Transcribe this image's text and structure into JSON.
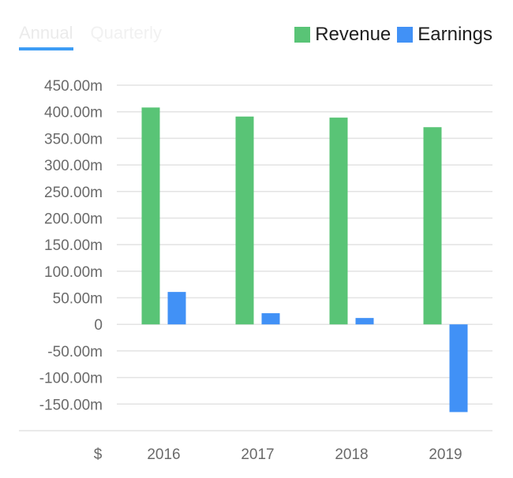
{
  "tabs": [
    {
      "label": "Annual",
      "active": true
    },
    {
      "label": "Quarterly",
      "active": false
    }
  ],
  "legend": {
    "items": [
      {
        "label": "Revenue",
        "color": "#59c476"
      },
      {
        "label": "Earnings",
        "color": "#4191f6"
      }
    ]
  },
  "currency_label": "$",
  "chart_data": {
    "type": "bar",
    "categories": [
      "2016",
      "2017",
      "2018",
      "2019"
    ],
    "series": [
      {
        "name": "Revenue",
        "color": "#59c476",
        "values": [
          408,
          391,
          389,
          371
        ]
      },
      {
        "name": "Earnings",
        "color": "#4191f6",
        "values": [
          61,
          21,
          12,
          -165
        ]
      }
    ],
    "yticks": [
      {
        "value": 450,
        "label": "450.00m"
      },
      {
        "value": 400,
        "label": "400.00m"
      },
      {
        "value": 350,
        "label": "350.00m"
      },
      {
        "value": 300,
        "label": "300.00m"
      },
      {
        "value": 250,
        "label": "250.00m"
      },
      {
        "value": 200,
        "label": "200.00m"
      },
      {
        "value": 150,
        "label": "150.00m"
      },
      {
        "value": 100,
        "label": "100.00m"
      },
      {
        "value": 50,
        "label": "50.00m"
      },
      {
        "value": 0,
        "label": "0"
      },
      {
        "value": -50,
        "label": "-50.00m"
      },
      {
        "value": -100,
        "label": "-100.00m"
      },
      {
        "value": -150,
        "label": "-150.00m"
      }
    ],
    "ylim": [
      -200,
      450
    ],
    "grid": true,
    "legend_position": "top-right"
  }
}
